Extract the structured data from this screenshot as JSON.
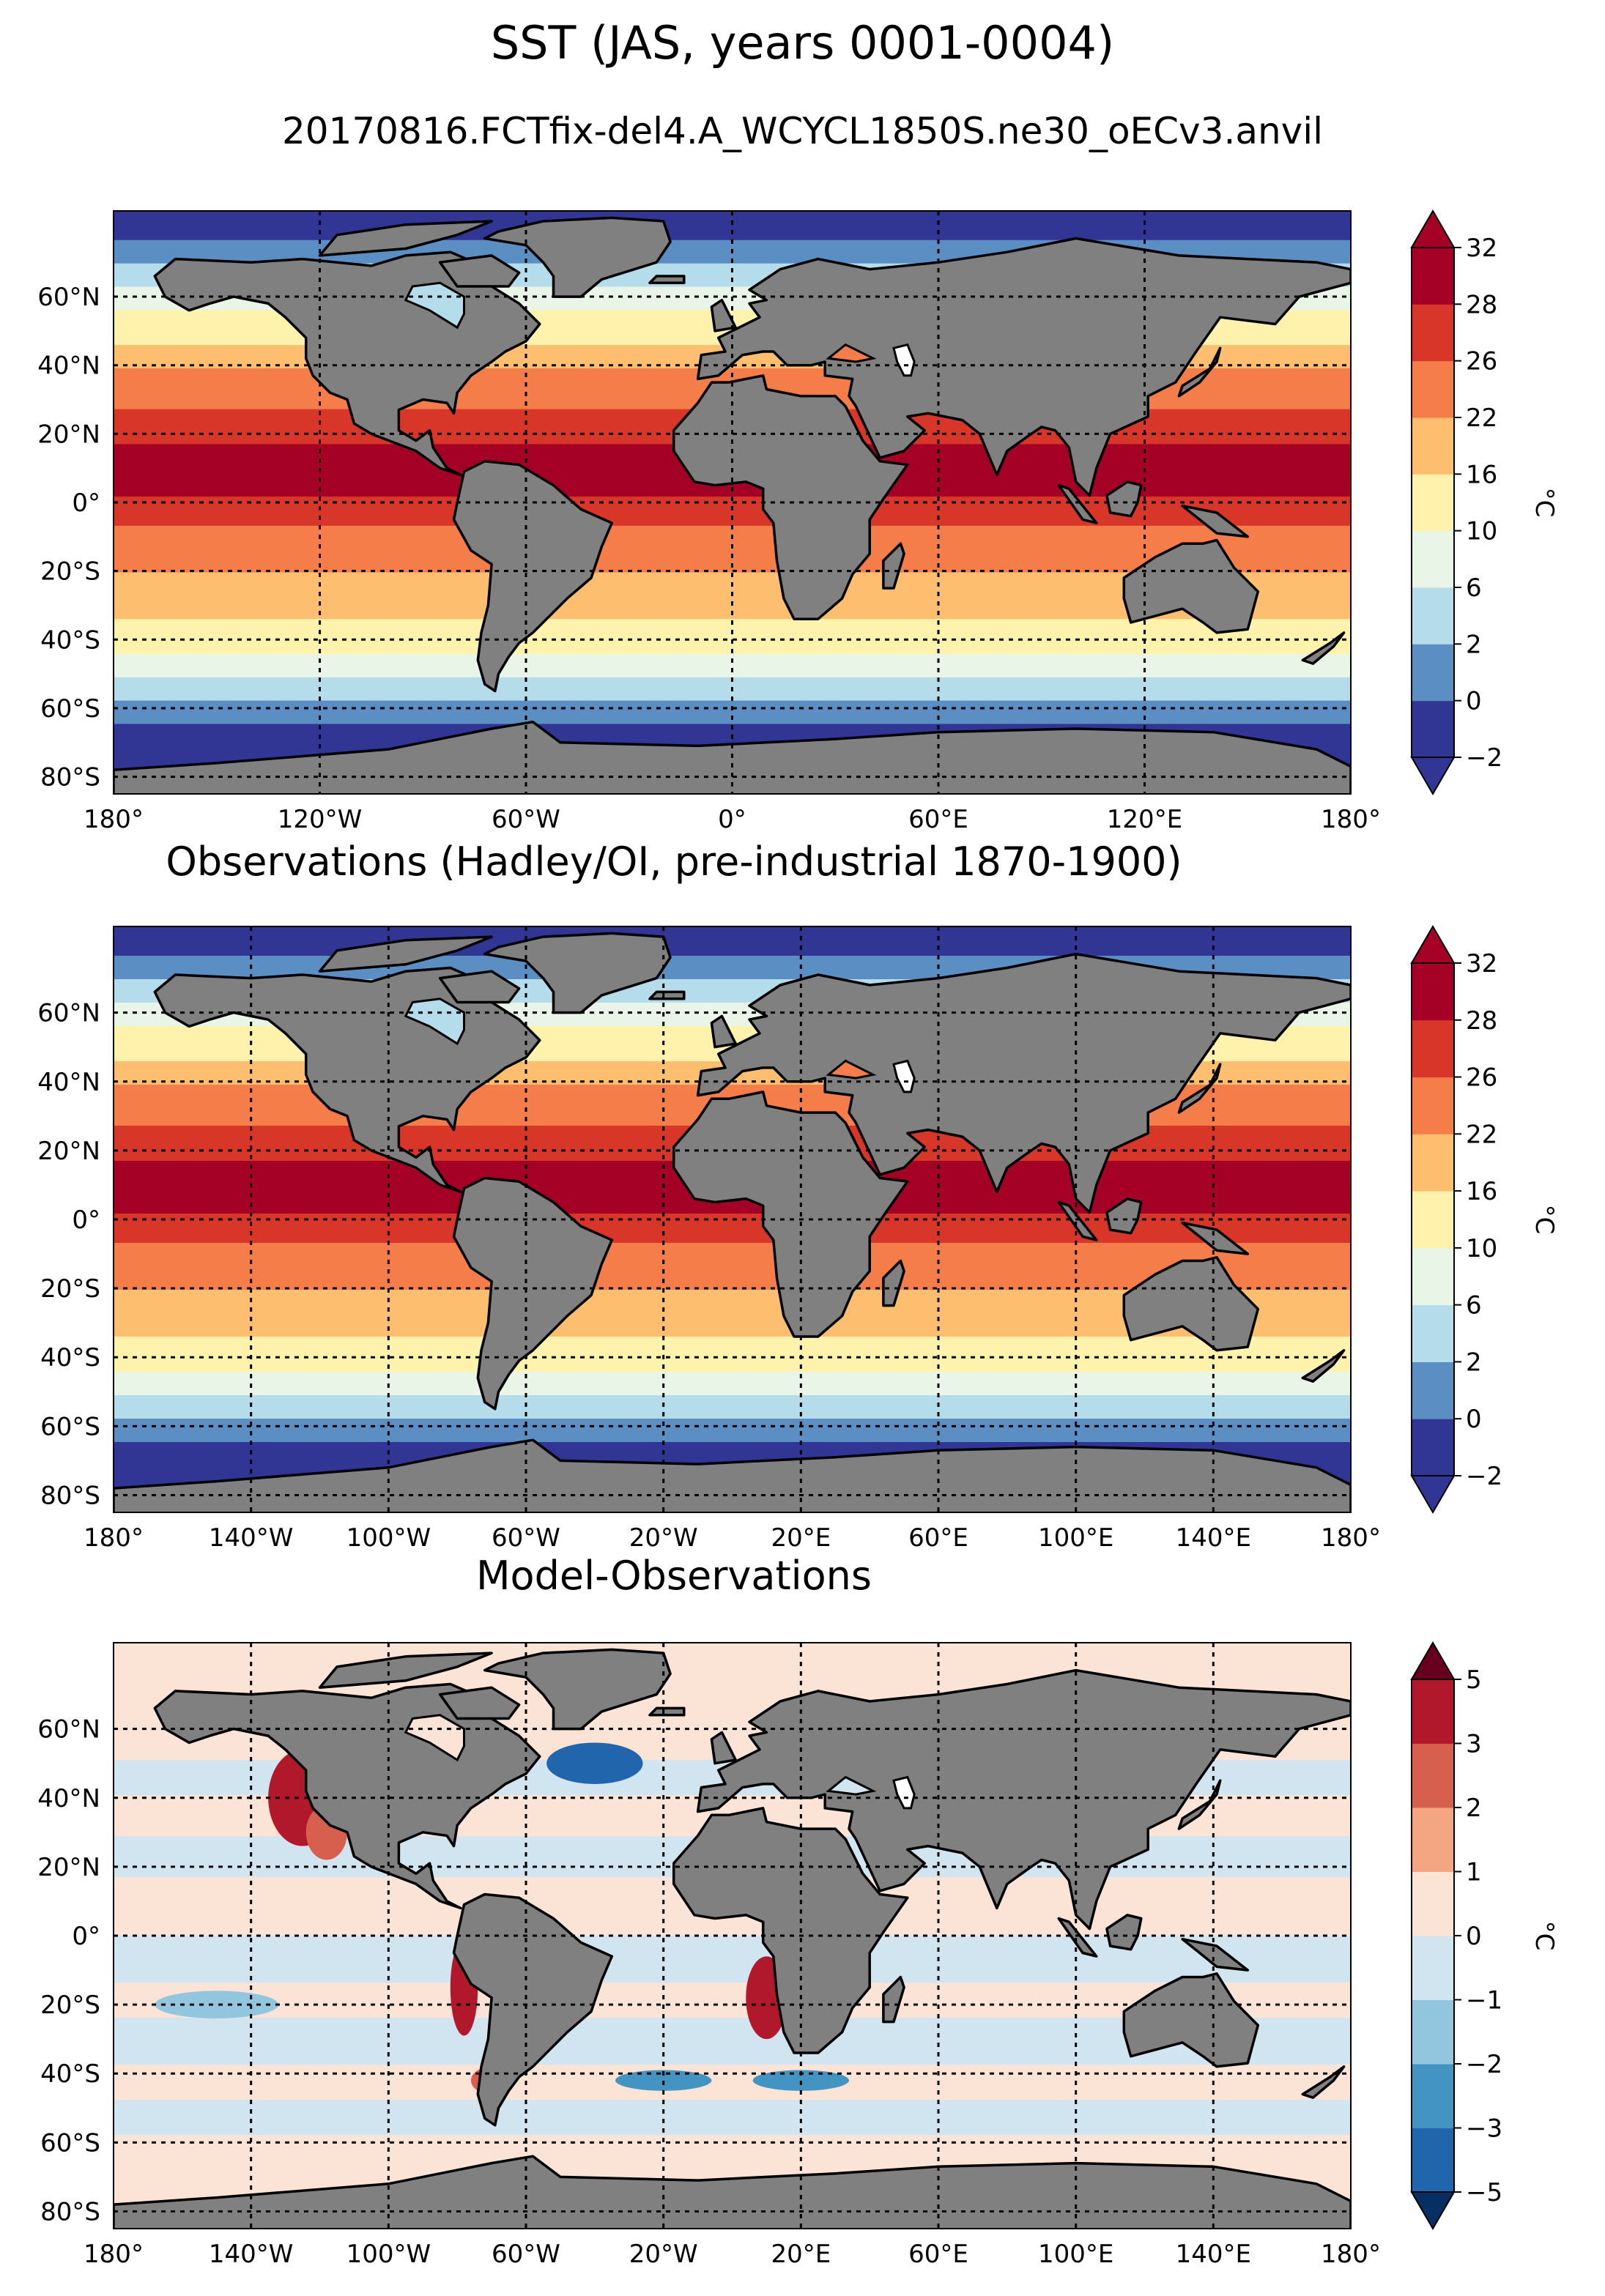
{
  "title": "SST (JAS, years 0001-0004)",
  "subtitle": "20170816.FCTfix-del4.A_WCYCL1850S.ne30_oECv3.anvil",
  "chart_data": [
    {
      "type": "heatmap",
      "title": "",
      "variable": "SST",
      "xlim": [
        -180,
        180
      ],
      "ylim": [
        -85,
        85
      ],
      "grid": true,
      "xticks": [
        -180,
        -120,
        -60,
        0,
        60,
        120,
        180
      ],
      "xtick_labels": [
        "180°",
        "120°W",
        "60°W",
        "0°",
        "60°E",
        "120°E",
        "180°"
      ],
      "yticks": [
        60,
        40,
        20,
        0,
        -20,
        -40,
        -60,
        -80
      ],
      "ytick_labels": [
        "60°N",
        "40°N",
        "20°N",
        "0°",
        "20°S",
        "40°S",
        "60°S",
        "80°S"
      ],
      "colorbar": {
        "label": "°C",
        "levels": [
          -2,
          0,
          2,
          6,
          10,
          16,
          22,
          26,
          28,
          32
        ],
        "tick_labels": [
          "−2",
          "0",
          "2",
          "6",
          "10",
          "16",
          "22",
          "26",
          "28",
          "32"
        ],
        "colors": [
          "#313695",
          "#5b8fc3",
          "#b4dcea",
          "#e8f5e7",
          "#fff2ac",
          "#fdbe70",
          "#f57d4a",
          "#d83628",
          "#a50026"
        ],
        "extend": "both"
      },
      "land_color": "#808080"
    },
    {
      "type": "heatmap",
      "title": "Observations (Hadley/OI, pre-industrial 1870-1900)",
      "variable": "SST",
      "xlim": [
        -180,
        180
      ],
      "ylim": [
        -85,
        85
      ],
      "grid": true,
      "xticks": [
        -180,
        -140,
        -100,
        -60,
        -20,
        20,
        60,
        100,
        140,
        180
      ],
      "xtick_labels": [
        "180°",
        "140°W",
        "100°W",
        "60°W",
        "20°W",
        "20°E",
        "60°E",
        "100°E",
        "140°E",
        "180°"
      ],
      "yticks": [
        60,
        40,
        20,
        0,
        -20,
        -40,
        -60,
        -80
      ],
      "ytick_labels": [
        "60°N",
        "40°N",
        "20°N",
        "0°",
        "20°S",
        "40°S",
        "60°S",
        "80°S"
      ],
      "colorbar": {
        "label": "°C",
        "levels": [
          -2,
          0,
          2,
          6,
          10,
          16,
          22,
          26,
          28,
          32
        ],
        "tick_labels": [
          "−2",
          "0",
          "2",
          "6",
          "10",
          "16",
          "22",
          "26",
          "28",
          "32"
        ],
        "colors": [
          "#313695",
          "#5b8fc3",
          "#b4dcea",
          "#e8f5e7",
          "#fff2ac",
          "#fdbe70",
          "#f57d4a",
          "#d83628",
          "#a50026"
        ],
        "extend": "both"
      },
      "land_color": "#808080"
    },
    {
      "type": "heatmap",
      "title": "Model-Observations",
      "variable": "SST difference",
      "xlim": [
        -180,
        180
      ],
      "ylim": [
        -85,
        85
      ],
      "grid": true,
      "xticks": [
        -180,
        -140,
        -100,
        -60,
        -20,
        20,
        60,
        100,
        140,
        180
      ],
      "xtick_labels": [
        "180°",
        "140°W",
        "100°W",
        "60°W",
        "20°W",
        "20°E",
        "60°E",
        "100°E",
        "140°E",
        "180°"
      ],
      "yticks": [
        60,
        40,
        20,
        0,
        -20,
        -40,
        -60,
        -80
      ],
      "ytick_labels": [
        "60°N",
        "40°N",
        "20°N",
        "0°",
        "20°S",
        "40°S",
        "60°S",
        "80°S"
      ],
      "colorbar": {
        "label": "°C",
        "levels": [
          -5,
          -3,
          -2,
          -1,
          0,
          1,
          2,
          3,
          5
        ],
        "tick_labels": [
          "−5",
          "−3",
          "−2",
          "−1",
          "0",
          "1",
          "2",
          "3",
          "5"
        ],
        "colors": [
          "#2166ac",
          "#4393c3",
          "#92c5de",
          "#d1e5f0",
          "#fbe3d6",
          "#f4a582",
          "#d6604d",
          "#b2182b"
        ],
        "extend_colors": [
          "#053061",
          "#67001f"
        ],
        "extend": "both"
      },
      "land_color": "#808080"
    }
  ]
}
